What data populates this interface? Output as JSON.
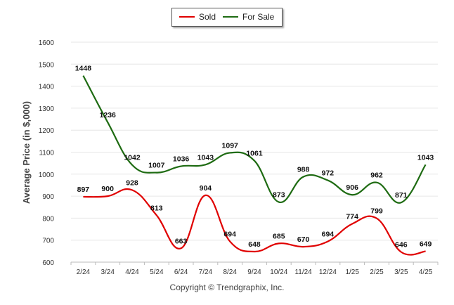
{
  "legend": {
    "sold_label": "Sold",
    "for_sale_label": "For Sale"
  },
  "credit": "Copyright © Trendgraphix, Inc.",
  "chart_data": {
    "type": "line",
    "title": "",
    "xlabel": "",
    "ylabel": "Average Price (in $,000)",
    "ylim": [
      600,
      1600
    ],
    "yticks": [
      600,
      700,
      800,
      900,
      1000,
      1100,
      1200,
      1300,
      1400,
      1500,
      1600
    ],
    "grid": true,
    "legend_position": "top-center",
    "categories": [
      "2/24",
      "3/24",
      "4/24",
      "5/24",
      "6/24",
      "7/24",
      "8/24",
      "9/24",
      "10/24",
      "11/24",
      "12/24",
      "1/25",
      "2/25",
      "3/25",
      "4/25"
    ],
    "series": [
      {
        "name": "Sold",
        "color": "#e00000",
        "values": [
          897,
          900,
          928,
          813,
          663,
          904,
          694,
          648,
          685,
          670,
          694,
          774,
          799,
          646,
          649
        ]
      },
      {
        "name": "For Sale",
        "color": "#1e6b12",
        "values": [
          1448,
          1236,
          1042,
          1007,
          1036,
          1043,
          1097,
          1061,
          873,
          988,
          972,
          906,
          962,
          871,
          1043
        ]
      }
    ]
  }
}
